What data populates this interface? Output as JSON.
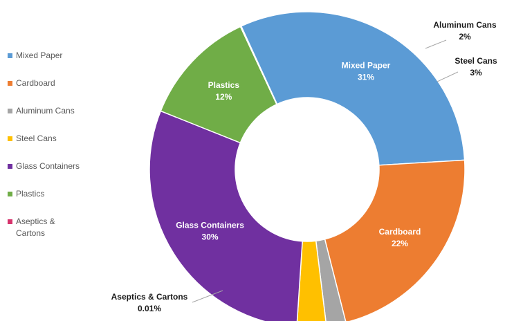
{
  "chart_data": {
    "type": "pie",
    "style": "donut",
    "legend_position": "left",
    "categories": [
      "Mixed Paper",
      "Cardboard",
      "Aluminum Cans",
      "Steel Cans",
      "Glass Containers",
      "Plastics",
      "Aseptics & Cartons"
    ],
    "values": [
      31,
      22,
      2,
      3,
      30,
      12,
      0.01
    ],
    "value_labels": [
      "31%",
      "22%",
      "2%",
      "3%",
      "30%",
      "12%",
      "0.01%"
    ],
    "legend_labels": [
      "Mixed Paper",
      "Cardboard",
      "Aluminum Cans",
      "Steel Cans",
      "Glass Containers",
      "Plastics",
      "Aseptics &\nCartons"
    ],
    "slice_labels": [
      "Mixed Paper",
      "Cardboard",
      "Aluminum Cans",
      "Steel Cans",
      "Glass Containers",
      "Plastics",
      "Aseptics & Cartons"
    ],
    "colors": [
      "#5b9bd5",
      "#ed7d31",
      "#a5a5a5",
      "#ffc000",
      "#7030a0",
      "#70ad47",
      "#d6336c"
    ]
  }
}
